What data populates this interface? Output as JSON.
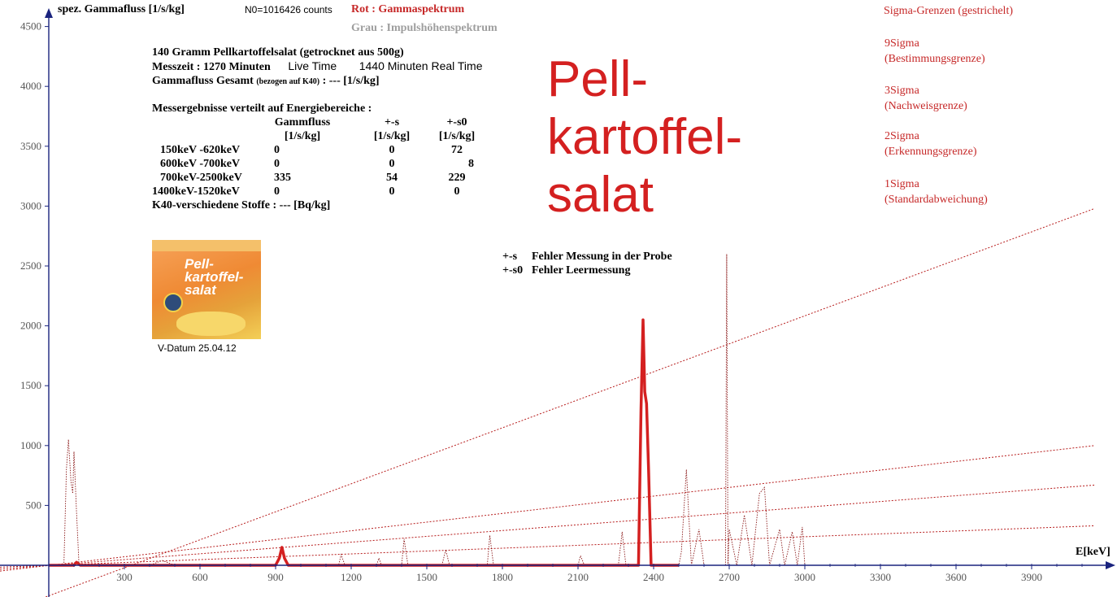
{
  "header": {
    "y_axis_label": "spez. Gammafluss [1/s/kg]",
    "n0": "N0=1016426 counts",
    "red_legend": "Rot : Gammaspektrum",
    "gray_legend": "Grau : Impulshöhenspektrum"
  },
  "info": {
    "line1": "140 Gramm Pellkartoffelsalat (getrocknet aus 500g)",
    "messzeit": "Messzeit : 1270 Minuten",
    "live_time": "Live Time",
    "real_time": "1440 Minuten Real Time",
    "gesamt_a": "Gammafluss Gesamt",
    "gesamt_b": "(bezogen auf K40)",
    "gesamt_c": ": --- [1/s/kg]"
  },
  "results": {
    "heading": "Messergebnisse verteilt auf  Energiebereiche :",
    "col_headers": [
      "Gammfluss",
      "+-s",
      "+-s0"
    ],
    "col_units": [
      "[1/s/kg]",
      "[1/s/kg]",
      "[1/s/kg]"
    ],
    "rows": [
      {
        "range": "150keV -620keV",
        "flux": "0",
        "s": "0",
        "s0": "72"
      },
      {
        "range": "600keV -700keV",
        "flux": "0",
        "s": "0",
        "s0": "8"
      },
      {
        "range": "700keV-2500keV",
        "flux": "335",
        "s": "54",
        "s0": "229"
      },
      {
        "range": "1400keV-1520keV",
        "flux": "0",
        "s": "0",
        "s0": "0"
      }
    ],
    "k40": "K40-verschiedene Stoffe : ---  [Bq/kg]"
  },
  "product": {
    "label": "Pell-kartoffel-salat",
    "v_datum": "V-Datum 25.04.12"
  },
  "big_title": [
    "Pell-",
    "kartoffel-",
    "salat"
  ],
  "errors": {
    "s": "+-s",
    "s_text": "Fehler Messung in der Probe",
    "s0": "+-s0",
    "s0_text": "Fehler Leermessung"
  },
  "sigma_legend": {
    "title": "Sigma-Grenzen (gestrichelt)",
    "items": [
      {
        "name": "9Sigma",
        "desc": "(Bestimmungsgrenze)"
      },
      {
        "name": "3Sigma",
        "desc": "(Nachweisgrenze)"
      },
      {
        "name": "2Sigma",
        "desc": "(Erkennungsgrenze)"
      },
      {
        "name": "1Sigma",
        "desc": "(Standardabweichung)"
      }
    ]
  },
  "colors": {
    "gamma": "#d42020",
    "sigma": "#b71c1c",
    "pulse_height": "#9e9e9e",
    "axis": "#1a237e"
  },
  "chart_data": {
    "type": "line",
    "xlabel": "E[keV]",
    "ylabel": "spez. Gammafluss [1/s/kg]",
    "xlim": [
      0,
      4150
    ],
    "ylim": [
      0,
      4500
    ],
    "x_ticks": [
      300,
      600,
      900,
      1200,
      1500,
      1800,
      2100,
      2400,
      2700,
      3000,
      3300,
      3600,
      3900
    ],
    "y_ticks": [
      500,
      1000,
      1500,
      2000,
      2500,
      3000,
      3500,
      4000,
      4500
    ],
    "series": [
      {
        "name": "Gammaspektrum",
        "style": "solid",
        "points": [
          [
            0,
            0
          ],
          [
            100,
            0
          ],
          [
            110,
            25
          ],
          [
            125,
            0
          ],
          [
            900,
            0
          ],
          [
            915,
            60
          ],
          [
            925,
            150
          ],
          [
            935,
            60
          ],
          [
            950,
            0
          ],
          [
            2340,
            0
          ],
          [
            2350,
            1300
          ],
          [
            2358,
            2050
          ],
          [
            2365,
            1450
          ],
          [
            2372,
            1350
          ],
          [
            2380,
            800
          ],
          [
            2390,
            0
          ],
          [
            2500,
            0
          ]
        ]
      },
      {
        "name": "Impulshöhenspektrum",
        "style": "dotted",
        "points": [
          [
            60,
            0
          ],
          [
            70,
            800
          ],
          [
            78,
            1050
          ],
          [
            88,
            700
          ],
          [
            95,
            600
          ],
          [
            100,
            950
          ],
          [
            110,
            450
          ],
          [
            120,
            0
          ],
          [
            400,
            0
          ],
          [
            450,
            40
          ],
          [
            500,
            0
          ],
          [
            1150,
            0
          ],
          [
            1160,
            90
          ],
          [
            1175,
            0
          ],
          [
            1300,
            0
          ],
          [
            1310,
            60
          ],
          [
            1320,
            0
          ],
          [
            1400,
            0
          ],
          [
            1410,
            220
          ],
          [
            1425,
            0
          ],
          [
            1560,
            0
          ],
          [
            1575,
            130
          ],
          [
            1590,
            0
          ],
          [
            1740,
            0
          ],
          [
            1750,
            250
          ],
          [
            1765,
            0
          ],
          [
            2100,
            0
          ],
          [
            2110,
            80
          ],
          [
            2125,
            0
          ],
          [
            2260,
            0
          ],
          [
            2275,
            280
          ],
          [
            2290,
            0
          ],
          [
            2500,
            0
          ],
          [
            2510,
            110
          ],
          [
            2530,
            800
          ],
          [
            2550,
            0
          ],
          [
            2580,
            300
          ],
          [
            2600,
            0
          ],
          [
            2685,
            0
          ],
          [
            2690,
            2600
          ],
          [
            2695,
            0
          ],
          [
            2700,
            300
          ],
          [
            2730,
            0
          ],
          [
            2760,
            420
          ],
          [
            2790,
            0
          ],
          [
            2820,
            600
          ],
          [
            2840,
            650
          ],
          [
            2860,
            0
          ],
          [
            2900,
            300
          ],
          [
            2920,
            0
          ],
          [
            2950,
            280
          ],
          [
            2970,
            0
          ],
          [
            2990,
            320
          ],
          [
            3000,
            0
          ]
        ]
      }
    ],
    "sigma_lines": [
      {
        "name": "9Sigma",
        "x": [
          0,
          4150
        ],
        "y": [
          -250,
          2980
        ]
      },
      {
        "name": "3Sigma",
        "x": [
          0,
          4150
        ],
        "y": [
          0,
          1000
        ]
      },
      {
        "name": "2Sigma",
        "x": [
          0,
          4150
        ],
        "y": [
          0,
          670
        ]
      },
      {
        "name": "1Sigma",
        "x": [
          0,
          4150
        ],
        "y": [
          0,
          330
        ]
      }
    ]
  }
}
